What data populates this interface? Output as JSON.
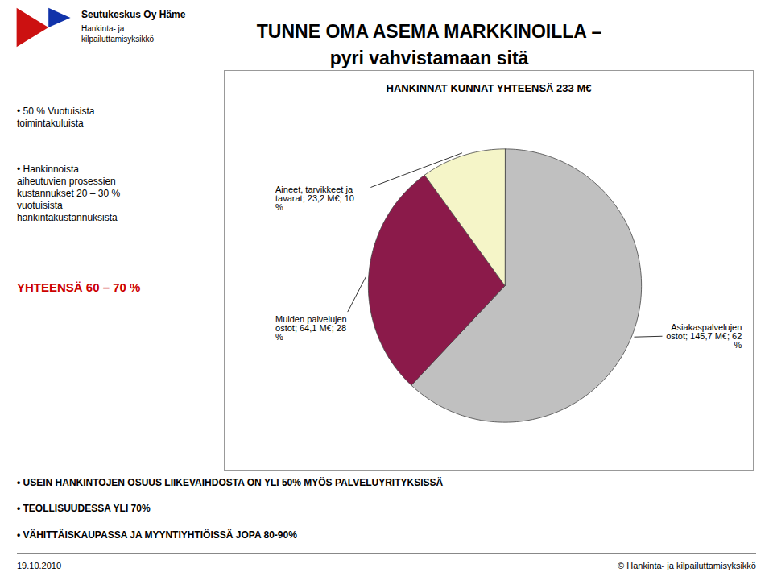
{
  "chart_data": {
    "type": "pie",
    "title": "HANKINNAT KUNNAT YHTEENSÄ 233 M€",
    "categories": [
      "Asiakaspalvelujen\nostot; 145,7 M€; 62\n%",
      "Muiden palvelujen\nostot; 64,1 M€; 28\n%",
      "Aineet, tarvikkeet ja\ntavarat; 23,2 M€; 10\n%"
    ],
    "values": [
      62,
      28,
      10
    ],
    "colors": [
      "#c0c0c0",
      "#8b1a4a",
      "#f5f5c8"
    ],
    "annotations": [
      {
        "text": "TUNNE OMA ASEMA MARKKINOILLA –"
      },
      {
        "text": "pyri vahvistamaan sitä"
      },
      {
        "text": "• 50 % Vuotuisista\ntoimintakuluista"
      },
      {
        "text": "• Hankinnoista\naiheutuvien prosessien\nkustannukset 20 – 30 %\nvuotuisista\nhankintakustannuksista"
      },
      {
        "text": "YHTEENSÄ 60 – 70 %",
        "color": "#cc0000"
      },
      {
        "text": "• USEIN HANKINTOJEN OSUUS LIIKEVAIHDOSTA ON YLI 50% MYÖS PALVELUYRITYKSISSÄ"
      },
      {
        "text": "• TEOLLISUUDESSA YLI 70%"
      },
      {
        "text": "• VÄHITTÄISKAUPASSA JA MYYNTIYHTIÖISSÄ JOPA 80-90%"
      },
      {
        "text": "19.10.2010"
      },
      {
        "text": "© Hankinta- ja kilpailuttamisyksikkö"
      },
      {
        "text": "Seutukeskus Oy Häme"
      },
      {
        "text": "Hankinta- ja\nkilpailuttamisyksikkö"
      }
    ]
  }
}
